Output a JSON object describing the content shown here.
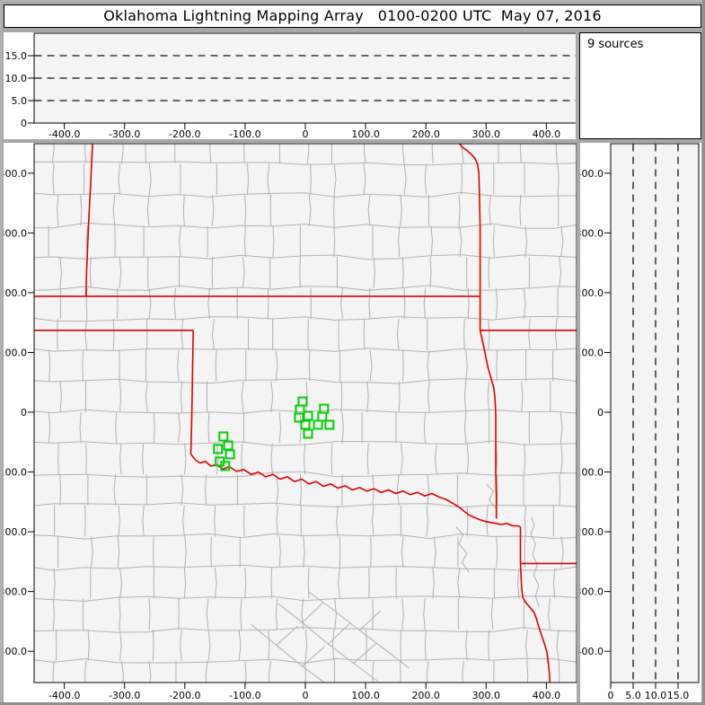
{
  "title": "Oklahoma Lightning Mapping Array   0100-0200 UTC  May 07, 2016",
  "sources_panel": {
    "label": "9 sources"
  },
  "colors": {
    "frame_bg": "#a8a8a8",
    "panel_bg": "#ffffff",
    "plot_bg": "#f4f4f4",
    "county_line": "#b0b0b0",
    "state_border": "#d80000",
    "station_green": "#00d000",
    "axis": "#000000",
    "dash_grid": "#111111"
  },
  "chart_data": {
    "type": "map",
    "title": "Oklahoma Lightning Mapping Array   0100-0200 UTC  May 07, 2016",
    "source_count_text": "9 sources",
    "panels": [
      {
        "id": "top",
        "role": "altitude vs east-west distance",
        "x_range_km": [
          -450,
          450
        ],
        "alt_range_km": [
          0,
          20
        ],
        "dashed_gridlines_alt_km": [
          5,
          10,
          15
        ]
      },
      {
        "id": "main",
        "role": "plan view map",
        "x_range_km": [
          -450,
          455
        ],
        "y_range_km": [
          -452,
          449
        ]
      },
      {
        "id": "right",
        "role": "north-south distance vs altitude",
        "alt_range_km": [
          0,
          19.6
        ],
        "y_range_km": [
          -452,
          449
        ],
        "dashed_gridlines_alt_km": [
          5,
          10,
          15
        ]
      }
    ],
    "ew_ticks": [
      {
        "km": -400,
        "label": "-400.0"
      },
      {
        "km": -300,
        "label": "-300.0"
      },
      {
        "km": -200,
        "label": "-200.0"
      },
      {
        "km": -100,
        "label": "-100.0"
      },
      {
        "km": 0,
        "label": "0"
      },
      {
        "km": 100,
        "label": "100.0"
      },
      {
        "km": 200,
        "label": "200.0"
      },
      {
        "km": 300,
        "label": "300.0"
      },
      {
        "km": 400,
        "label": "400.0"
      }
    ],
    "ns_ticks": [
      {
        "km": 400,
        "label": "400.0"
      },
      {
        "km": 300,
        "label": "300.0"
      },
      {
        "km": 200,
        "label": "200.0"
      },
      {
        "km": 100,
        "label": "100.0"
      },
      {
        "km": 0,
        "label": "0"
      },
      {
        "km": -100,
        "label": "-100.0"
      },
      {
        "km": -200,
        "label": "-200.0"
      },
      {
        "km": -300,
        "label": "-300.0"
      },
      {
        "km": -400,
        "label": "-400.0"
      }
    ],
    "alt_ticks": [
      {
        "km": 0,
        "label": "0"
      },
      {
        "km": 5,
        "label": "5.0"
      },
      {
        "km": 10,
        "label": "10.0"
      },
      {
        "km": 15,
        "label": "15.0"
      }
    ],
    "stations_km": [
      [
        -4.5,
        18
      ],
      [
        -9,
        4.5
      ],
      [
        -10.5,
        -9
      ],
      [
        4.5,
        -6
      ],
      [
        0,
        -21
      ],
      [
        4.5,
        -36
      ],
      [
        31,
        6
      ],
      [
        28,
        -7.5
      ],
      [
        21,
        -21
      ],
      [
        40,
        -21
      ],
      [
        -136,
        -40.5
      ],
      [
        -128,
        -55.5
      ],
      [
        -145,
        -61.5
      ],
      [
        -125,
        -70.5
      ],
      [
        -142,
        -82.5
      ],
      [
        -133,
        -90
      ]
    ],
    "state_borders_km": [
      [
        [
          -353,
          449
        ],
        [
          -355,
          410
        ],
        [
          -357,
          370
        ],
        [
          -359,
          330
        ],
        [
          -361,
          285
        ],
        [
          -363,
          235
        ],
        [
          -364,
          194
        ]
      ],
      [
        [
          -450,
          194
        ],
        [
          290,
          194
        ]
      ],
      [
        [
          256,
          449
        ],
        [
          261,
          443
        ],
        [
          268,
          438
        ],
        [
          276,
          431
        ],
        [
          282,
          424
        ],
        [
          286,
          414
        ],
        [
          288,
          400
        ],
        [
          289,
          360
        ],
        [
          290,
          310
        ],
        [
          290,
          260
        ],
        [
          290,
          194
        ],
        [
          290,
          137
        ]
      ],
      [
        [
          290,
          137
        ],
        [
          458,
          137
        ]
      ],
      [
        [
          290,
          137
        ],
        [
          296,
          110
        ],
        [
          303,
          75
        ],
        [
          313,
          40
        ],
        [
          315,
          18
        ],
        [
          316,
          -5
        ],
        [
          316,
          -50
        ],
        [
          316,
          -100
        ],
        [
          317,
          -145
        ],
        [
          317,
          -178
        ]
      ],
      [
        [
          -450,
          137
        ],
        [
          -186,
          137
        ]
      ],
      [
        [
          -186,
          137
        ],
        [
          -187,
          80
        ],
        [
          -188,
          20
        ],
        [
          -189,
          -30
        ],
        [
          -190,
          -70
        ]
      ],
      [
        [
          -190,
          -70
        ],
        [
          -183,
          -79
        ],
        [
          -175,
          -85
        ],
        [
          -166,
          -82
        ],
        [
          -157,
          -90
        ],
        [
          -147,
          -88
        ],
        [
          -137,
          -95
        ],
        [
          -126,
          -91
        ],
        [
          -114,
          -99
        ],
        [
          -102,
          -96
        ],
        [
          -90,
          -104
        ],
        [
          -78,
          -100
        ],
        [
          -66,
          -108
        ],
        [
          -54,
          -104
        ],
        [
          -42,
          -112
        ],
        [
          -30,
          -108
        ],
        [
          -18,
          -116
        ],
        [
          -6,
          -112
        ],
        [
          6,
          -120
        ],
        [
          18,
          -116
        ],
        [
          30,
          -124
        ],
        [
          42,
          -120
        ],
        [
          54,
          -127
        ],
        [
          66,
          -123
        ],
        [
          78,
          -130
        ],
        [
          90,
          -126
        ],
        [
          102,
          -132
        ],
        [
          114,
          -128
        ],
        [
          126,
          -134
        ],
        [
          138,
          -130
        ],
        [
          150,
          -136
        ],
        [
          162,
          -132
        ],
        [
          174,
          -138
        ],
        [
          186,
          -134
        ],
        [
          198,
          -140
        ],
        [
          210,
          -136
        ],
        [
          222,
          -142
        ],
        [
          234,
          -146
        ],
        [
          244,
          -152
        ],
        [
          254,
          -158
        ],
        [
          264,
          -166
        ],
        [
          272,
          -172
        ],
        [
          280,
          -176
        ],
        [
          290,
          -180
        ],
        [
          300,
          -183
        ],
        [
          310,
          -185
        ],
        [
          317,
          -186
        ]
      ],
      [
        [
          317,
          -186
        ],
        [
          325,
          -188
        ],
        [
          334,
          -186
        ],
        [
          344,
          -190
        ],
        [
          352,
          -190
        ],
        [
          357,
          -192
        ]
      ],
      [
        [
          357,
          -192
        ],
        [
          357,
          -253
        ]
      ],
      [
        [
          357,
          -253
        ],
        [
          458,
          -253
        ]
      ],
      [
        [
          357,
          -253
        ],
        [
          358,
          -275
        ],
        [
          359,
          -295
        ],
        [
          361,
          -310
        ],
        [
          367,
          -320
        ],
        [
          373,
          -327
        ],
        [
          379,
          -334
        ],
        [
          383,
          -344
        ],
        [
          387,
          -358
        ],
        [
          392,
          -373
        ],
        [
          397,
          -388
        ],
        [
          401,
          -402
        ],
        [
          403,
          -418
        ],
        [
          405,
          -438
        ],
        [
          406,
          -458
        ]
      ]
    ],
    "rivers_km": [
      [
        [
          375,
          -175
        ],
        [
          380,
          -190
        ],
        [
          374,
          -204
        ],
        [
          382,
          -220
        ],
        [
          377,
          -238
        ],
        [
          385,
          -255
        ],
        [
          379,
          -272
        ],
        [
          387,
          -290
        ],
        [
          382,
          -308
        ],
        [
          388,
          -325
        ]
      ],
      [
        [
          250,
          -192
        ],
        [
          262,
          -205
        ],
        [
          255,
          -220
        ],
        [
          268,
          -236
        ],
        [
          260,
          -252
        ],
        [
          272,
          -268
        ]
      ],
      [
        [
          300,
          -120
        ],
        [
          312,
          -132
        ],
        [
          305,
          -147
        ],
        [
          316,
          -160
        ]
      ]
    ],
    "extra_county_segments_km": [
      [
        [
          -45,
          -320
        ],
        [
          -5,
          -352
        ]
      ],
      [
        [
          -5,
          -352
        ],
        [
          38,
          -388
        ]
      ],
      [
        [
          38,
          -388
        ],
        [
          80,
          -420
        ]
      ],
      [
        [
          80,
          -420
        ],
        [
          120,
          -450
        ]
      ],
      [
        [
          -90,
          -355
        ],
        [
          -48,
          -390
        ]
      ],
      [
        [
          -48,
          -390
        ],
        [
          -5,
          -425
        ]
      ],
      [
        [
          -5,
          -425
        ],
        [
          35,
          -455
        ]
      ],
      [
        [
          5,
          -300
        ],
        [
          48,
          -332
        ]
      ],
      [
        [
          48,
          -332
        ],
        [
          90,
          -365
        ]
      ],
      [
        [
          90,
          -365
        ],
        [
          132,
          -397
        ]
      ],
      [
        [
          132,
          -397
        ],
        [
          172,
          -428
        ]
      ],
      [
        [
          -5,
          -352
        ],
        [
          30,
          -318
        ]
      ],
      [
        [
          38,
          -388
        ],
        [
          75,
          -352
        ]
      ],
      [
        [
          -48,
          -390
        ],
        [
          -12,
          -357
        ]
      ],
      [
        [
          80,
          -420
        ],
        [
          118,
          -386
        ]
      ],
      [
        [
          90,
          -365
        ],
        [
          125,
          -332
        ]
      ],
      [
        [
          -5,
          -425
        ],
        [
          32,
          -392
        ]
      ]
    ],
    "county_grid": {
      "step_km": 52,
      "row_jitter_km": 9,
      "col_jitter_km": 20,
      "seed": 7
    }
  }
}
